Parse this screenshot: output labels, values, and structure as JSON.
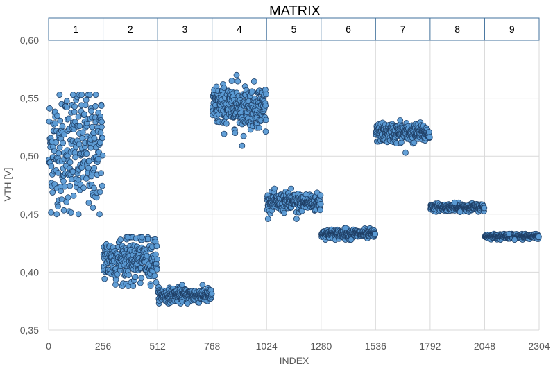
{
  "chart_data": {
    "type": "scatter",
    "title": "MATRIX",
    "xlabel": "INDEX",
    "ylabel": "VTH [V]",
    "xlim": [
      0,
      2304
    ],
    "ylim": [
      0.35,
      0.6
    ],
    "x_ticks": [
      0,
      256,
      512,
      768,
      1024,
      1280,
      1536,
      1792,
      2048,
      2304
    ],
    "x_tick_labels": [
      "0",
      "256",
      "512",
      "768",
      "1024",
      "1280",
      "1536",
      "1792",
      "2048",
      "2304"
    ],
    "y_ticks": [
      0.35,
      0.4,
      0.45,
      0.5,
      0.55,
      0.6
    ],
    "y_tick_labels": [
      "0,35",
      "0,40",
      "0,45",
      "0,50",
      "0,55",
      "0,60"
    ],
    "grid": true,
    "groups": [
      {
        "label": "1",
        "x_range": [
          0,
          256
        ],
        "center": 0.505,
        "spread": 0.026,
        "min": 0.45,
        "max": 0.553
      },
      {
        "label": "2",
        "x_range": [
          256,
          512
        ],
        "center": 0.411,
        "spread": 0.01,
        "min": 0.388,
        "max": 0.43
      },
      {
        "label": "3",
        "x_range": [
          512,
          768
        ],
        "center": 0.38,
        "spread": 0.003,
        "min": 0.373,
        "max": 0.389
      },
      {
        "label": "4",
        "x_range": [
          768,
          1024
        ],
        "center": 0.543,
        "spread": 0.009,
        "min": 0.509,
        "max": 0.57
      },
      {
        "label": "5",
        "x_range": [
          1024,
          1280
        ],
        "center": 0.46,
        "spread": 0.004,
        "min": 0.446,
        "max": 0.472
      },
      {
        "label": "6",
        "x_range": [
          1280,
          1536
        ],
        "center": 0.433,
        "spread": 0.002,
        "min": 0.428,
        "max": 0.438
      },
      {
        "label": "7",
        "x_range": [
          1536,
          1792
        ],
        "center": 0.52,
        "spread": 0.004,
        "min": 0.503,
        "max": 0.531
      },
      {
        "label": "8",
        "x_range": [
          1792,
          2048
        ],
        "center": 0.456,
        "spread": 0.0015,
        "min": 0.452,
        "max": 0.46
      },
      {
        "label": "9",
        "x_range": [
          2048,
          2304
        ],
        "center": 0.431,
        "spread": 0.001,
        "min": 0.428,
        "max": 0.433
      }
    ],
    "colors": {
      "marker_fill": "#5b9bd5",
      "marker_edge": "#1f3f66",
      "grid": "#d9d9d9",
      "header_border": "#41719c"
    }
  }
}
